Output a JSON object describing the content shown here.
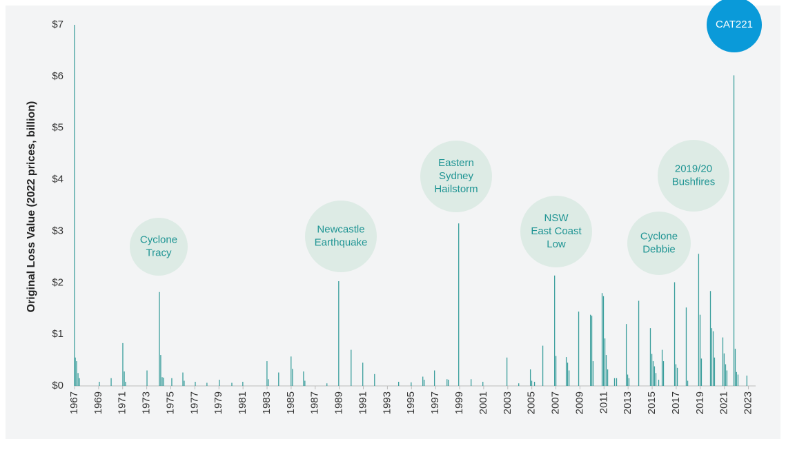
{
  "chart_data": {
    "type": "bar",
    "y_label": "Original Loss Value (2022 prices, billion)",
    "color": "#3a9e9c",
    "xlim": [
      1967,
      2024
    ],
    "xticks": [
      1967,
      1969,
      1971,
      1973,
      1975,
      1977,
      1979,
      1981,
      1983,
      1985,
      1987,
      1989,
      1991,
      1993,
      1995,
      1997,
      1999,
      2001,
      2003,
      2005,
      2007,
      2009,
      2011,
      2013,
      2015,
      2017,
      2019,
      2021,
      2023
    ],
    "ylim": [
      0,
      7
    ],
    "yticks": [
      {
        "value": 0,
        "label": "$0"
      },
      {
        "value": 1,
        "label": "$1"
      },
      {
        "value": 2,
        "label": "$2"
      },
      {
        "value": 3,
        "label": "$3"
      },
      {
        "value": 4,
        "label": "$4"
      },
      {
        "value": 5,
        "label": "$5"
      },
      {
        "value": 6,
        "label": "$6"
      },
      {
        "value": 7,
        "label": "$7"
      }
    ],
    "x": [
      1967.0,
      1967.06,
      1967.17,
      1967.29,
      1967.4,
      1969.06,
      1970.04,
      1971.01,
      1971.13,
      1971.24,
      1973.02,
      1974.05,
      1974.16,
      1974.28,
      1974.39,
      1975.08,
      1976.0,
      1976.11,
      1977.03,
      1978.0,
      1979.03,
      1980.07,
      1980.98,
      1982.99,
      1983.1,
      1983.96,
      1984.99,
      1985.11,
      1986.03,
      1986.14,
      1987.97,
      1988.95,
      1989.98,
      1990.95,
      1991.93,
      1993.93,
      1994.97,
      1995.94,
      1996.05,
      1996.91,
      1997.95,
      1998.06,
      1998.92,
      1999.95,
      2000.93,
      2002.93,
      2003.91,
      2004.88,
      2004.99,
      2005.22,
      2005.91,
      2006.89,
      2007.0,
      2007.86,
      2007.97,
      2008.09,
      2008.89,
      2009.87,
      2009.98,
      2010.09,
      2010.84,
      2010.95,
      2011.07,
      2011.18,
      2011.3,
      2011.87,
      2012.04,
      2012.85,
      2012.96,
      2013.07,
      2013.88,
      2014.85,
      2014.97,
      2015.08,
      2015.19,
      2015.31,
      2015.54,
      2015.83,
      2015.94,
      2016.86,
      2016.97,
      2017.09,
      2017.83,
      2017.95,
      2018.86,
      2018.98,
      2019.09,
      2019.84,
      2019.95,
      2020.07,
      2020.18,
      2020.87,
      2020.98,
      2021.1,
      2021.21,
      2021.79,
      2021.9,
      2022.01,
      2022.13,
      2022.87
    ],
    "values": [
      7.0,
      0.55,
      0.48,
      0.25,
      0.15,
      0.08,
      0.15,
      0.83,
      0.28,
      0.08,
      0.3,
      1.82,
      0.6,
      0.17,
      0.16,
      0.15,
      0.26,
      0.1,
      0.08,
      0.06,
      0.12,
      0.06,
      0.08,
      0.48,
      0.13,
      0.26,
      0.57,
      0.33,
      0.28,
      0.1,
      0.05,
      2.03,
      0.7,
      0.45,
      0.23,
      0.08,
      0.07,
      0.18,
      0.12,
      0.3,
      0.13,
      0.12,
      3.15,
      0.13,
      0.08,
      0.55,
      0.05,
      0.32,
      0.1,
      0.08,
      0.78,
      2.14,
      0.58,
      0.56,
      0.45,
      0.3,
      1.44,
      1.38,
      1.36,
      0.48,
      1.8,
      1.74,
      0.92,
      0.6,
      0.32,
      0.15,
      0.15,
      1.2,
      0.22,
      0.15,
      1.65,
      1.12,
      0.62,
      0.48,
      0.38,
      0.25,
      0.12,
      0.7,
      0.48,
      2.01,
      0.42,
      0.35,
      1.52,
      0.1,
      2.56,
      1.38,
      0.53,
      1.84,
      1.12,
      1.06,
      0.55,
      0.94,
      0.63,
      0.42,
      0.3,
      6.02,
      0.72,
      0.27,
      0.22,
      0.2
    ],
    "annotations": [
      {
        "lines": [
          "Cyclone",
          "Tracy"
        ]
      },
      {
        "lines": [
          "Newcastle",
          "Earthquake"
        ]
      },
      {
        "lines": [
          "Eastern",
          "Sydney",
          "Hailstorm"
        ]
      },
      {
        "lines": [
          "NSW",
          "East Coast",
          "Low"
        ]
      },
      {
        "lines": [
          "Cyclone",
          "Debbie"
        ]
      },
      {
        "lines": [
          "2019/20",
          "Bushfires"
        ]
      },
      {
        "lines": [
          "CAT221"
        ]
      }
    ]
  }
}
